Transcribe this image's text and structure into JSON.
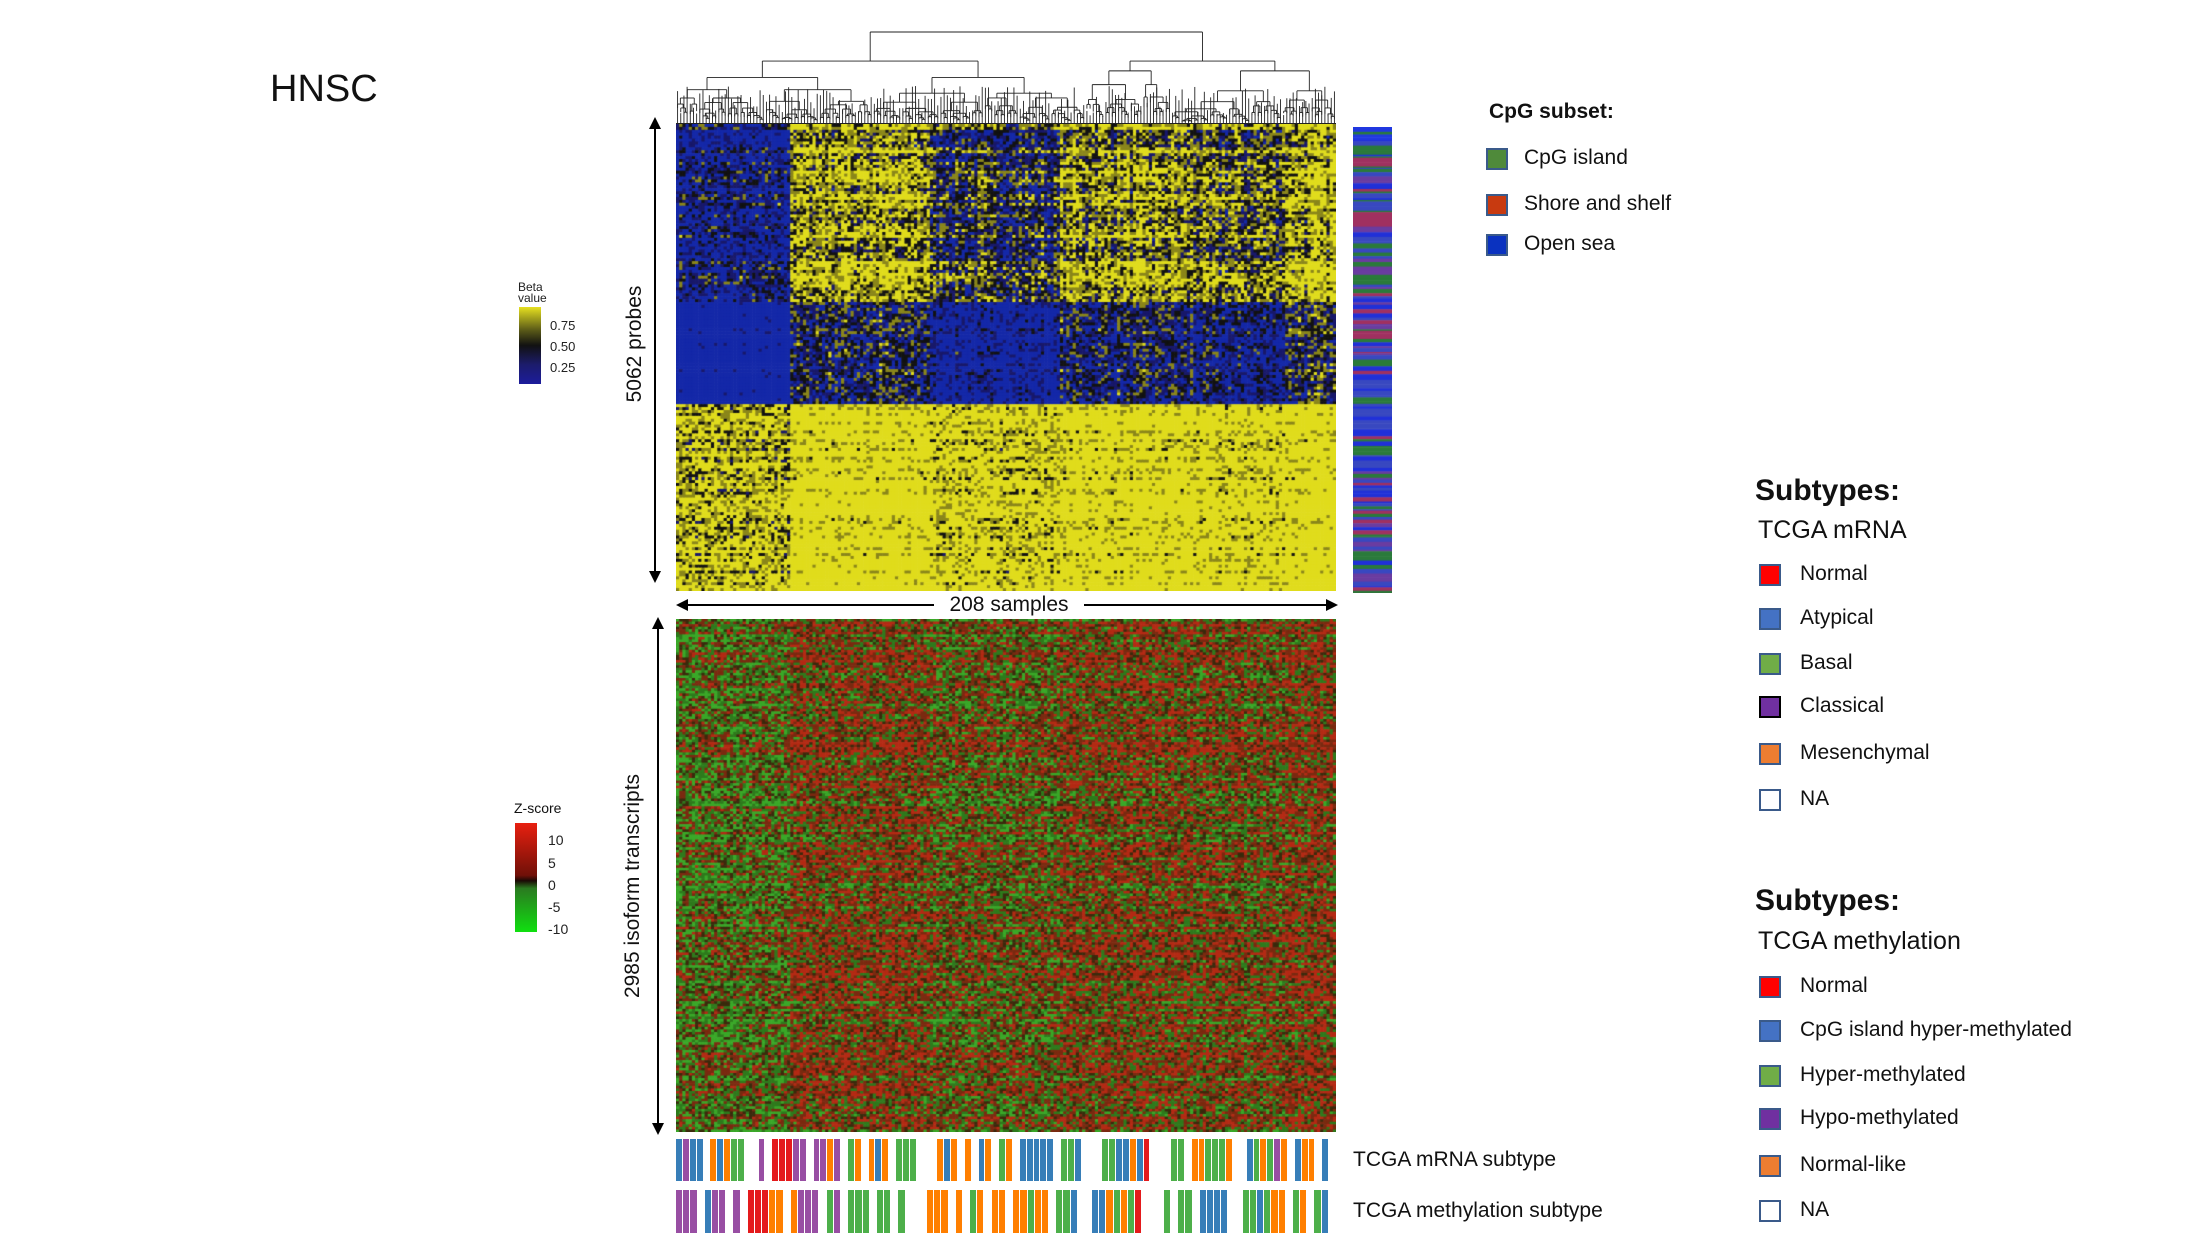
{
  "title": "HNSC",
  "heatmap_top": {
    "row_label": "5062 probes",
    "col_label": "208 samples"
  },
  "heatmap_bottom": {
    "row_label": "2985 isoform transcripts"
  },
  "beta_legend": {
    "title_line1": "Beta",
    "title_line2": "value",
    "ticks": [
      "0.75",
      "0.50",
      "0.25"
    ],
    "colors": {
      "high": "#e6e020",
      "mid": "#111111",
      "low": "#1c1c8c"
    }
  },
  "z_legend": {
    "title": "Z-score",
    "ticks": [
      "10",
      "5",
      "0",
      "-5",
      "-10"
    ],
    "colors": {
      "high": "#e82010",
      "mid": "#1a0a05",
      "low": "#10e010"
    }
  },
  "cpg_legend": {
    "title": "CpG subset:",
    "items": [
      {
        "label": "CpG island",
        "color": "#4f8a3a"
      },
      {
        "label": "Shore and shelf",
        "color": "#c83a10"
      },
      {
        "label": "Open sea",
        "color": "#0a32c0"
      }
    ]
  },
  "mrna_legend": {
    "title": "Subtypes:",
    "subtitle": "TCGA mRNA",
    "items": [
      {
        "label": "Normal",
        "color": "#ff0000"
      },
      {
        "label": "Atypical",
        "color": "#4472c4"
      },
      {
        "label": "Basal",
        "color": "#70ad47"
      },
      {
        "label": "Classical",
        "color": "#7030a0"
      },
      {
        "label": "Mesenchymal",
        "color": "#ed7d31"
      },
      {
        "label": "NA",
        "color": "#ffffff"
      }
    ]
  },
  "meth_legend": {
    "title": "Subtypes:",
    "subtitle": "TCGA methylation",
    "items": [
      {
        "label": "Normal",
        "color": "#ff0000"
      },
      {
        "label": "CpG island hyper-methylated",
        "color": "#4472c4"
      },
      {
        "label": "Hyper-methylated",
        "color": "#70ad47"
      },
      {
        "label": "Hypo-methylated",
        "color": "#7030a0"
      },
      {
        "label": "Normal-like",
        "color": "#ed7d31"
      },
      {
        "label": "NA",
        "color": "#ffffff"
      }
    ]
  },
  "annotation_tracks": {
    "mrna_label": "TCGA mRNA subtype",
    "meth_label": "TCGA methylation subtype",
    "palette": {
      "R": "#e41a1c",
      "B": "#377eb8",
      "G": "#4daf4a",
      "P": "#984ea3",
      "O": "#ff7f00",
      "n": "#ffffff"
    },
    "mrna_sequence": "BPBBnOBOGGnnPnRRRPPnPPOPnGOnOBOnGGGnnnOBOnOnBOnGOnBBBBBnGGBnnnGGBBOBRnnnGGnOOGGGOnnBGOGPOnBOOnBn",
    "meth_sequence": "PPPnBPPnPnRRROOnOPPPnGPnGGGnGGnGnnnOOOnOnGOnOOnOOGOOnGGBnnBBOGOGRnnnGnGGnBBBBnnGGBGOOnGOnGBn"
  }
}
